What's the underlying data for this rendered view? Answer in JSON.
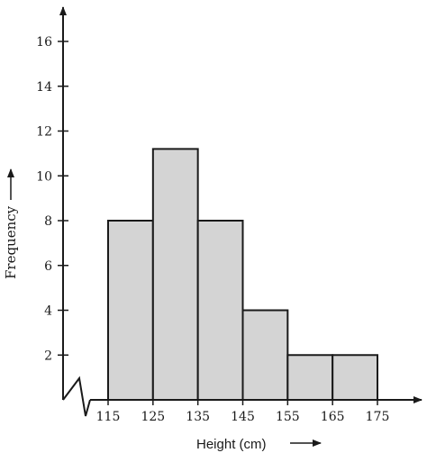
{
  "chart_data": {
    "type": "bar",
    "subtype": "histogram",
    "title": "",
    "xlabel": "Height (cm)",
    "ylabel": "Frequency",
    "bins": [
      {
        "from": 115,
        "to": 125,
        "value": 8
      },
      {
        "from": 125,
        "to": 135,
        "value": 11.2
      },
      {
        "from": 135,
        "to": 145,
        "value": 8
      },
      {
        "from": 145,
        "to": 155,
        "value": 4
      },
      {
        "from": 155,
        "to": 165,
        "value": 2
      },
      {
        "from": 165,
        "to": 175,
        "value": 2
      }
    ],
    "x_ticks": [
      115,
      125,
      135,
      145,
      155,
      165,
      175
    ],
    "x_tick_labels": [
      "115",
      "125",
      "135",
      "145",
      "155",
      "165",
      "175"
    ],
    "y_ticks": [
      2,
      4,
      6,
      8,
      10,
      12,
      14,
      16
    ],
    "y_tick_labels": [
      "2",
      "4",
      "6",
      "8",
      "10",
      "12",
      "14",
      "16"
    ],
    "xlim": [
      115,
      175
    ],
    "ylim": [
      0,
      16
    ],
    "x_axis_break": true,
    "grid": false,
    "bar_fill": "#d4d4d4",
    "bar_stroke": "#1a1a1a",
    "axis_color": "#1a1a1a"
  }
}
